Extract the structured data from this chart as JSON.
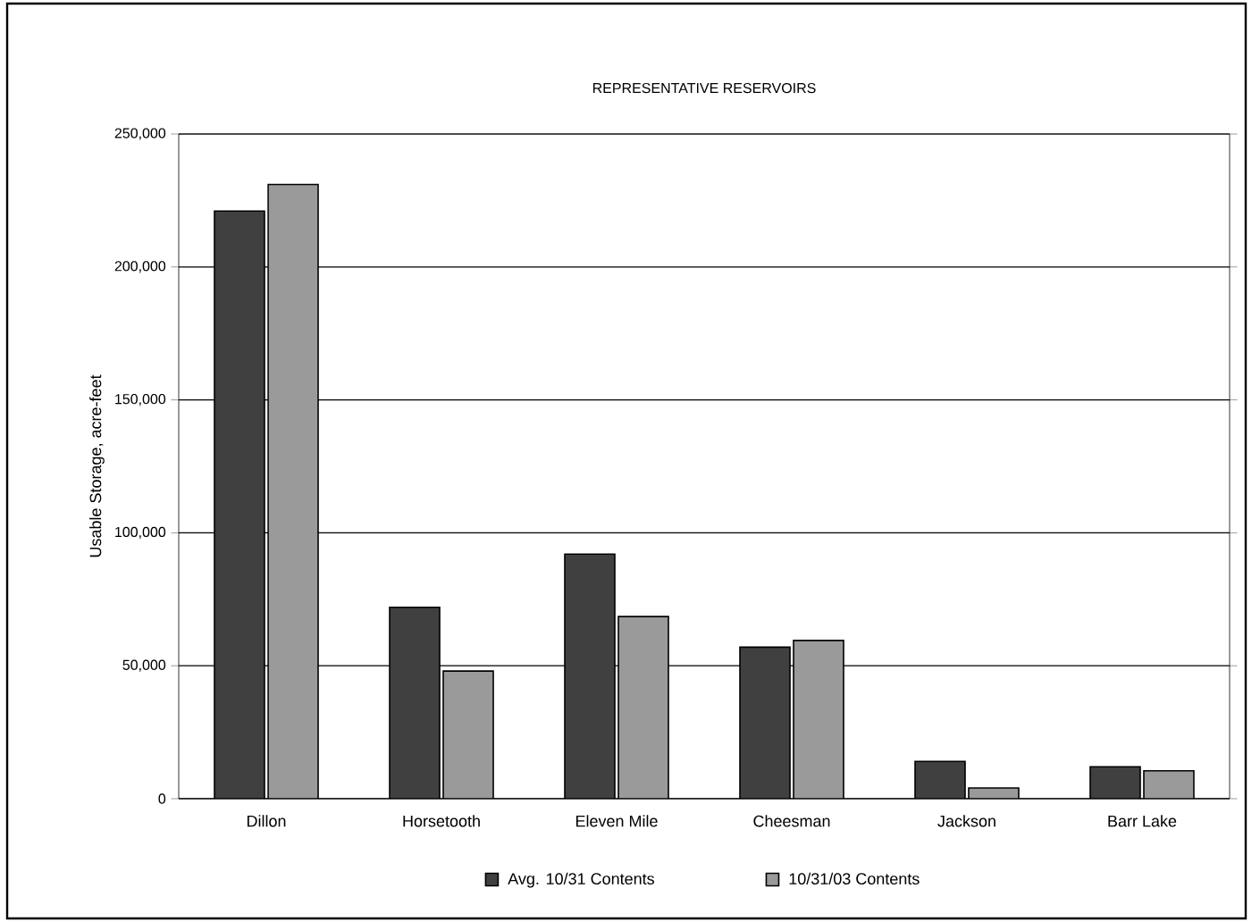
{
  "chart_data": {
    "type": "bar",
    "title": "REPRESENTATIVE RESERVOIRS",
    "ylabel": "Usable Storage, acre-feet",
    "categories": [
      "Dillon",
      "Horsetooth",
      "Eleven Mile",
      "Cheesman",
      "Jackson",
      "Barr Lake"
    ],
    "series": [
      {
        "name": "Avg. 10/31 Contents",
        "color": "#404040",
        "values": [
          221000,
          72000,
          92000,
          57000,
          14000,
          12000
        ]
      },
      {
        "name": "10/31/03 Contents",
        "color": "#9a9a9a",
        "values": [
          231000,
          48000,
          68500,
          59500,
          4000,
          10500
        ]
      }
    ],
    "ylim": [
      0,
      250000
    ],
    "yticks": [
      {
        "value": 0,
        "label": "0"
      },
      {
        "value": 50000,
        "label": "50,000"
      },
      {
        "value": 100000,
        "label": "100,000"
      },
      {
        "value": 150000,
        "label": "150,000"
      },
      {
        "value": 200000,
        "label": "200,000"
      },
      {
        "value": 250000,
        "label": "250,000"
      }
    ],
    "grid": "y",
    "legend": "bottom"
  }
}
